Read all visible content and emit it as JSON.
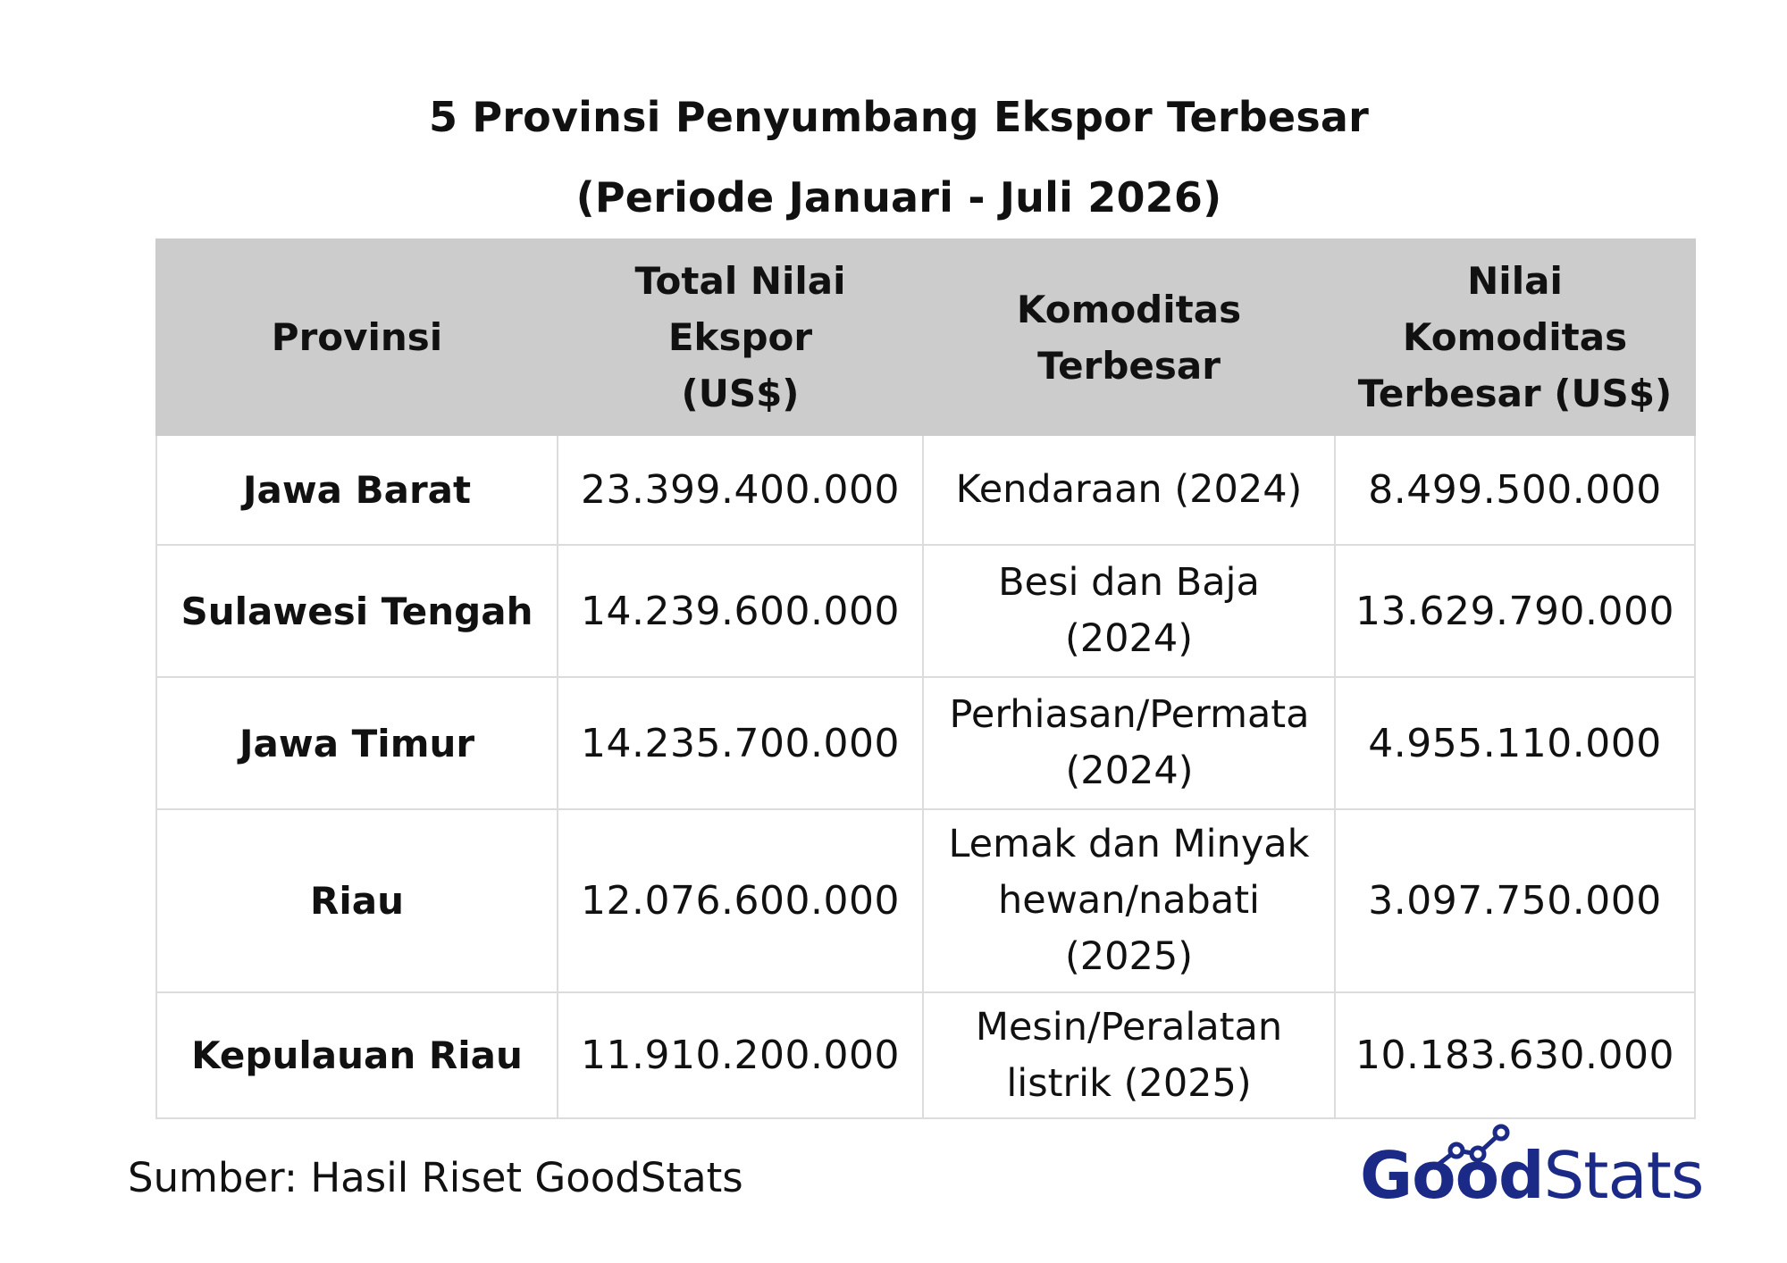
{
  "title": "5 Provinsi Penyumbang Ekspor Terbesar",
  "subtitle": "(Periode Januari - Juli 2026)",
  "table": {
    "headers": [
      "Provinsi",
      "Total Nilai Ekspor (US$)",
      "Komoditas Terbesar",
      "Nilai Komoditas Terbesar (US$)"
    ],
    "rows": [
      {
        "province": "Jawa Barat",
        "total": "23.399.400.000",
        "commodity": "Kendaraan (2024)",
        "commodity_value": "8.499.500.000"
      },
      {
        "province": "Sulawesi Tengah",
        "total": "14.239.600.000",
        "commodity": "Besi dan Baja (2024)",
        "commodity_value": "13.629.790.000"
      },
      {
        "province": "Jawa Timur",
        "total": "14.235.700.000",
        "commodity": "Perhiasan/Permata (2024)",
        "commodity_value": "4.955.110.000"
      },
      {
        "province": "Riau",
        "total": "12.076.600.000",
        "commodity": "Lemak dan Minyak hewan/nabati (2025)",
        "commodity_value": "3.097.750.000"
      },
      {
        "province": "Kepulauan Riau",
        "total": "11.910.200.000",
        "commodity": "Mesin/Peralatan listrik (2025)",
        "commodity_value": "10.183.630.000"
      }
    ]
  },
  "source": "Sumber:  Hasil Riset GoodStats",
  "logo": {
    "part1": "Good",
    "part2": "Stats",
    "color": "#1b2a86"
  },
  "colors": {
    "header_bg": "#cccccc",
    "border": "#dcdcdc",
    "text": "#111111"
  }
}
